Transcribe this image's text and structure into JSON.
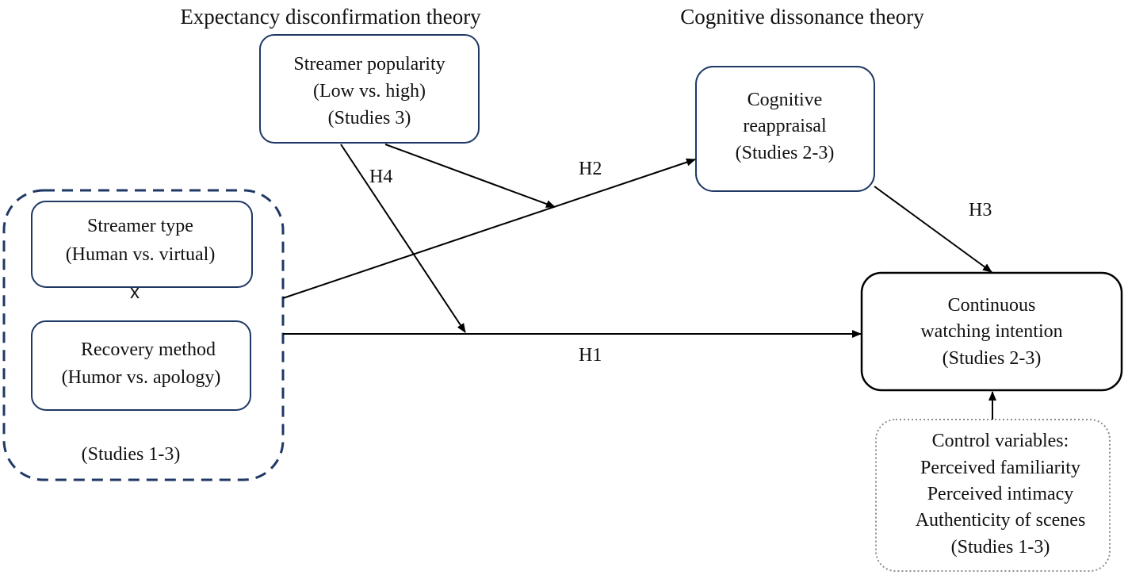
{
  "titles": {
    "left": "Expectancy disconfirmation theory",
    "right": "Cognitive dissonance theory"
  },
  "colors": {
    "navy": "#1f3864",
    "black": "#000000",
    "dotted_grey": "#8c8c8c"
  },
  "nodes": {
    "popularity": [
      "Streamer popularity",
      "(Low vs. high)",
      "(Studies 3)"
    ],
    "reappraisal": [
      "Cognitive",
      "reappraisal",
      "(Studies 2-3)"
    ],
    "streamer_type": [
      "Streamer type",
      "(Human vs. virtual)"
    ],
    "times": "x",
    "recovery": [
      "Recovery method",
      "(Humor vs. apology)"
    ],
    "group_studies": "(Studies 1-3)",
    "intention": [
      "Continuous",
      "watching intention",
      "(Studies 2-3)"
    ],
    "controls": [
      "Control variables:",
      "Perceived familiarity",
      "Perceived intimacy",
      "Authenticity of scenes",
      "(Studies 1-3)"
    ]
  },
  "hypotheses": {
    "h1": "H1",
    "h2": "H2",
    "h3": "H3",
    "h4": "H4"
  }
}
